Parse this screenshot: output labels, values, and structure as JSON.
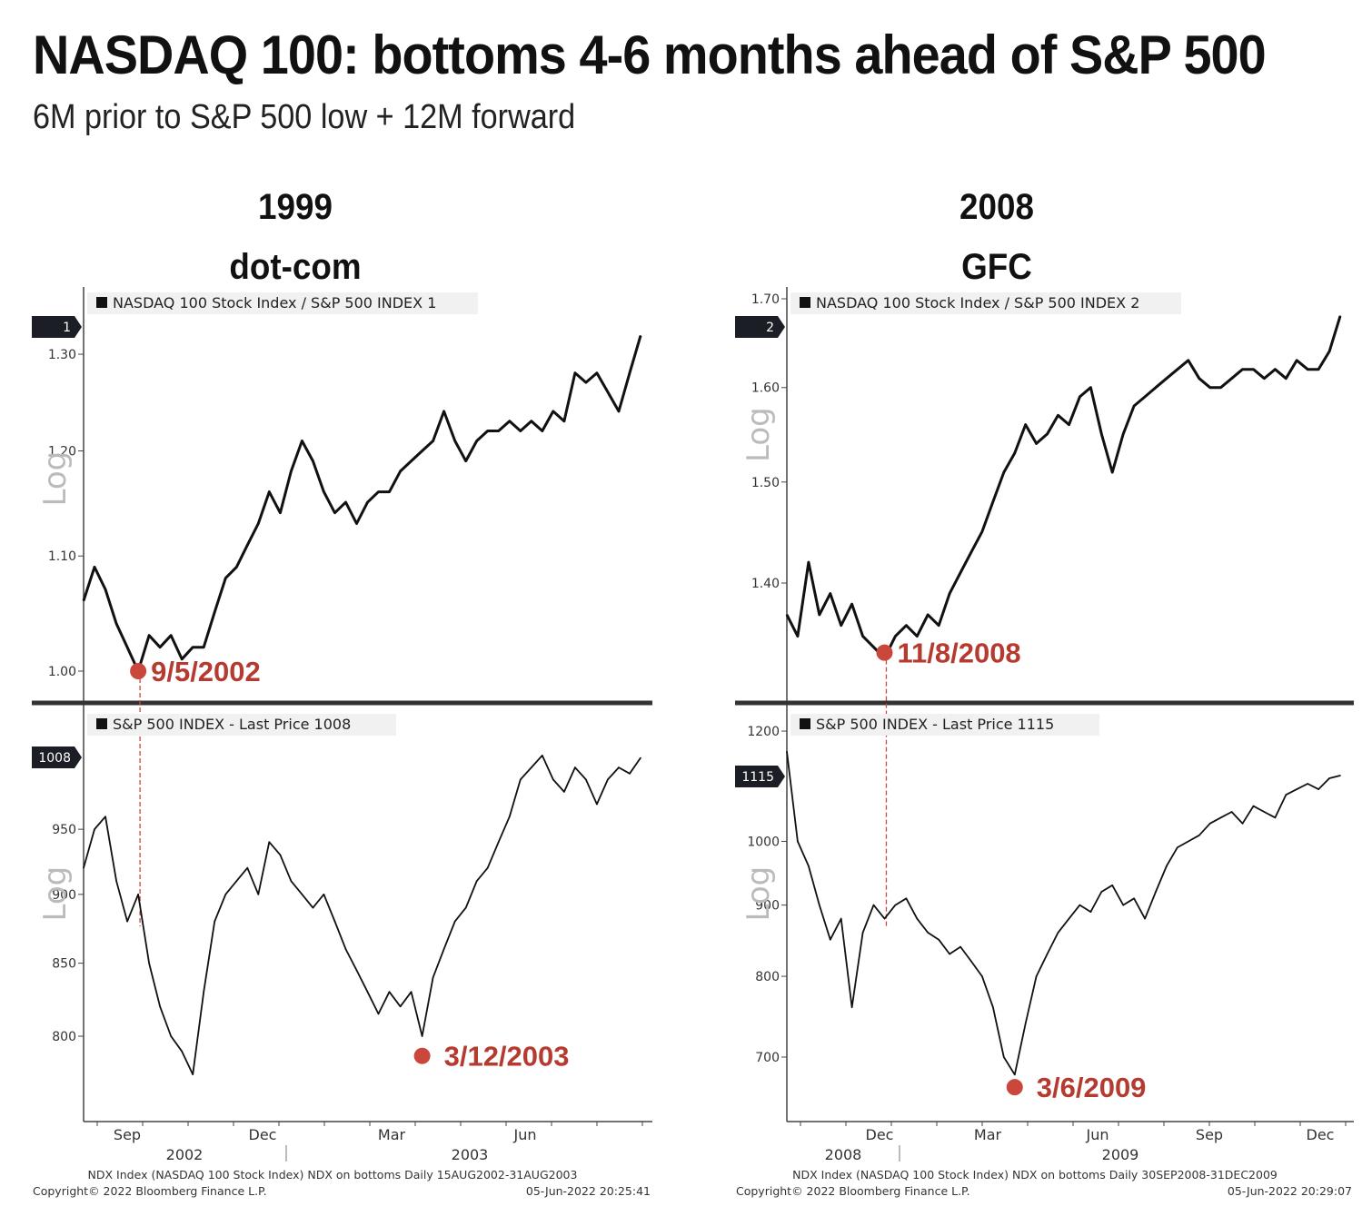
{
  "title": "NASDAQ 100: bottoms 4-6 months ahead of S&P 500",
  "subtitle": "6M prior to S&P 500 low + 12M forward",
  "colors": {
    "line": "#111111",
    "marker": "#c9473b",
    "annotation": "#b53a30",
    "separator": "#333333"
  },
  "chart_data": [
    {
      "type": "line",
      "title_line1": "1999",
      "title_line2": "dot-com",
      "upper": {
        "legend": "NASDAQ 100 Stock Index / S&P 500 INDEX 1",
        "tag": "1",
        "axis_label": "Log",
        "yticks": [
          1.0,
          1.1,
          1.2,
          1.3
        ],
        "ytick_labels": [
          "1.00",
          "1.10",
          "1.20",
          "1.30"
        ],
        "values": [
          1.06,
          1.09,
          1.07,
          1.04,
          1.02,
          1.0,
          1.03,
          1.02,
          1.03,
          1.01,
          1.02,
          1.02,
          1.05,
          1.08,
          1.09,
          1.11,
          1.13,
          1.16,
          1.14,
          1.18,
          1.21,
          1.19,
          1.16,
          1.14,
          1.15,
          1.13,
          1.15,
          1.16,
          1.16,
          1.18,
          1.19,
          1.2,
          1.21,
          1.24,
          1.21,
          1.19,
          1.21,
          1.22,
          1.22,
          1.23,
          1.22,
          1.23,
          1.22,
          1.24,
          1.23,
          1.28,
          1.27,
          1.28,
          1.26,
          1.24,
          1.28,
          1.32
        ],
        "low": {
          "label": "9/5/2002",
          "index": 5,
          "value": 1.0
        }
      },
      "lower": {
        "legend": "S&P 500 INDEX - Last Price 1008",
        "tag": "1008",
        "axis_label": "Log",
        "yticks": [
          800,
          850,
          900,
          950
        ],
        "ytick_labels": [
          "800",
          "850",
          "900",
          "950"
        ],
        "values": [
          920,
          950,
          960,
          910,
          880,
          900,
          850,
          820,
          800,
          790,
          775,
          830,
          880,
          900,
          910,
          920,
          900,
          940,
          930,
          910,
          900,
          890,
          900,
          880,
          860,
          845,
          830,
          815,
          830,
          820,
          830,
          800,
          840,
          860,
          880,
          890,
          910,
          920,
          940,
          960,
          990,
          1000,
          1010,
          990,
          980,
          1000,
          990,
          970,
          990,
          1000,
          995,
          1008
        ],
        "low": {
          "label": "3/12/2003",
          "index": 31,
          "value": 787
        }
      },
      "xtick_labels": [
        "Sep",
        "Dec",
        "Mar",
        "Jun"
      ],
      "year_labels": [
        "2002",
        "2003"
      ],
      "footer_line1": "NDX Index (NASDAQ 100 Stock Index) NDX on bottoms  Daily 15AUG2002-31AUG2003",
      "footer_copyright": "Copyright© 2022 Bloomberg Finance L.P.",
      "footer_timestamp": "05-Jun-2022 20:25:41"
    },
    {
      "type": "line",
      "title_line1": "2008",
      "title_line2": "GFC",
      "upper": {
        "legend": "NASDAQ 100 Stock Index / S&P 500 INDEX 2",
        "tag": "2",
        "axis_label": "Log",
        "yticks": [
          1.4,
          1.5,
          1.6,
          1.7
        ],
        "ytick_labels": [
          "1.40",
          "1.50",
          "1.60",
          "1.70"
        ],
        "values": [
          1.37,
          1.35,
          1.42,
          1.37,
          1.39,
          1.36,
          1.38,
          1.35,
          1.34,
          1.33,
          1.35,
          1.36,
          1.35,
          1.37,
          1.36,
          1.39,
          1.41,
          1.43,
          1.45,
          1.48,
          1.51,
          1.53,
          1.56,
          1.54,
          1.55,
          1.57,
          1.56,
          1.59,
          1.6,
          1.55,
          1.51,
          1.55,
          1.58,
          1.59,
          1.6,
          1.61,
          1.62,
          1.63,
          1.61,
          1.6,
          1.6,
          1.61,
          1.62,
          1.62,
          1.61,
          1.62,
          1.61,
          1.63,
          1.62,
          1.62,
          1.64,
          1.68
        ],
        "low": {
          "label": "11/8/2008",
          "index": 9,
          "value": 1.335
        }
      },
      "lower": {
        "legend": "S&P 500 INDEX - Last Price 1115",
        "tag": "1115",
        "axis_label": "Log",
        "yticks": [
          700,
          800,
          900,
          1000,
          1200
        ],
        "ytick_labels": [
          "700",
          "800",
          "900",
          "1000",
          "1200"
        ],
        "values": [
          1160,
          1000,
          960,
          900,
          850,
          880,
          760,
          860,
          900,
          880,
          900,
          910,
          880,
          860,
          850,
          830,
          840,
          820,
          800,
          760,
          700,
          680,
          740,
          800,
          830,
          860,
          880,
          900,
          890,
          920,
          930,
          900,
          910,
          880,
          920,
          960,
          990,
          1000,
          1010,
          1030,
          1040,
          1050,
          1030,
          1060,
          1050,
          1040,
          1080,
          1090,
          1100,
          1090,
          1110,
          1115
        ],
        "low": {
          "label": "3/6/2009",
          "index": 21,
          "value": 666
        }
      },
      "xtick_labels": [
        "Dec",
        "Mar",
        "Jun",
        "Sep",
        "Dec"
      ],
      "year_labels": [
        "2008",
        "2009"
      ],
      "footer_line1": "NDX Index (NASDAQ 100 Stock Index) NDX on bottoms  Daily 30SEP2008-31DEC2009",
      "footer_copyright": "Copyright© 2022 Bloomberg Finance L.P.",
      "footer_timestamp": "05-Jun-2022 20:29:07"
    }
  ]
}
